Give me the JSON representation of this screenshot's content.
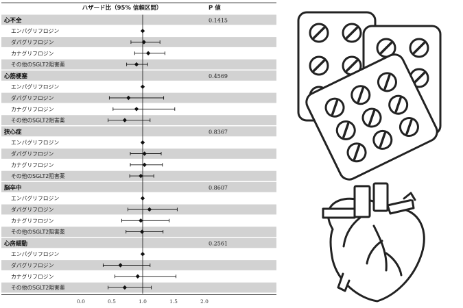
{
  "chart_data": {
    "type": "forest",
    "header": {
      "label": "ハザード比（95% 信頼区間）",
      "p_label": "P 値"
    },
    "x_ticks": [
      "0.0",
      "0.5",
      "1.0",
      "1.5",
      "2.0"
    ],
    "xlim": [
      0.0,
      2.0
    ],
    "reference_line": 1.0,
    "groups": [
      {
        "name": "心不全",
        "p": "0.1415",
        "rows": [
          {
            "label": "エンパグリフロジン",
            "hr": 1.0,
            "lo": 1.0,
            "hi": 1.0
          },
          {
            "label": "ダパグリフロジン",
            "hr": 1.02,
            "lo": 0.81,
            "hi": 1.28
          },
          {
            "label": "カナグリフロジン",
            "hr": 1.09,
            "lo": 0.87,
            "hi": 1.36
          },
          {
            "label": "その他のSGLT2阻害薬",
            "hr": 0.9,
            "lo": 0.74,
            "hi": 1.08
          }
        ]
      },
      {
        "name": "心筋梗塞",
        "p": "0.4569",
        "rows": [
          {
            "label": "エンパグリフロジン",
            "hr": 1.0,
            "lo": 1.0,
            "hi": 1.0
          },
          {
            "label": "ダパグリフロジン",
            "hr": 0.77,
            "lo": 0.46,
            "hi": 1.34
          },
          {
            "label": "カナグリフロジン",
            "hr": 0.9,
            "lo": 0.52,
            "hi": 1.52
          },
          {
            "label": "その他のSGLT2阻害薬",
            "hr": 0.71,
            "lo": 0.44,
            "hi": 1.12
          }
        ]
      },
      {
        "name": "狭心症",
        "p": "0.8367",
        "rows": [
          {
            "label": "エンパグリフロジン",
            "hr": 1.0,
            "lo": 1.0,
            "hi": 1.0
          },
          {
            "label": "ダパグリフロジン",
            "hr": 1.03,
            "lo": 0.8,
            "hi": 1.3
          },
          {
            "label": "カナグリフロジン",
            "hr": 1.03,
            "lo": 0.8,
            "hi": 1.32
          },
          {
            "label": "その他のSGLT2阻害薬",
            "hr": 0.97,
            "lo": 0.79,
            "hi": 1.18
          }
        ]
      },
      {
        "name": "脳卒中",
        "p": "0.8607",
        "rows": [
          {
            "label": "エンパグリフロジン",
            "hr": 1.0,
            "lo": 1.0,
            "hi": 1.0
          },
          {
            "label": "ダパグリフロジン",
            "hr": 1.11,
            "lo": 0.76,
            "hi": 1.56
          },
          {
            "label": "カナグリフロジン",
            "hr": 0.97,
            "lo": 0.66,
            "hi": 1.43
          },
          {
            "label": "その他のSGLT2阻害薬",
            "hr": 0.99,
            "lo": 0.73,
            "hi": 1.33
          }
        ]
      },
      {
        "name": "心房細動",
        "p": "0.2561",
        "rows": [
          {
            "label": "エンパグリフロジン",
            "hr": 1.0,
            "lo": 1.0,
            "hi": 1.0
          },
          {
            "label": "ダパグリフロジン",
            "hr": 0.64,
            "lo": 0.36,
            "hi": 1.12
          },
          {
            "label": "カナグリフロジン",
            "hr": 0.92,
            "lo": 0.55,
            "hi": 1.54
          },
          {
            "label": "その他のSGLT2阻害薬",
            "hr": 0.71,
            "lo": 0.44,
            "hi": 1.14
          }
        ]
      }
    ]
  },
  "icons": [
    "pill-blister-packs-icon",
    "heart-icon"
  ],
  "colors": {
    "band": "#d2d2d2",
    "ink": "#111111",
    "icon_stroke": "#222222"
  }
}
